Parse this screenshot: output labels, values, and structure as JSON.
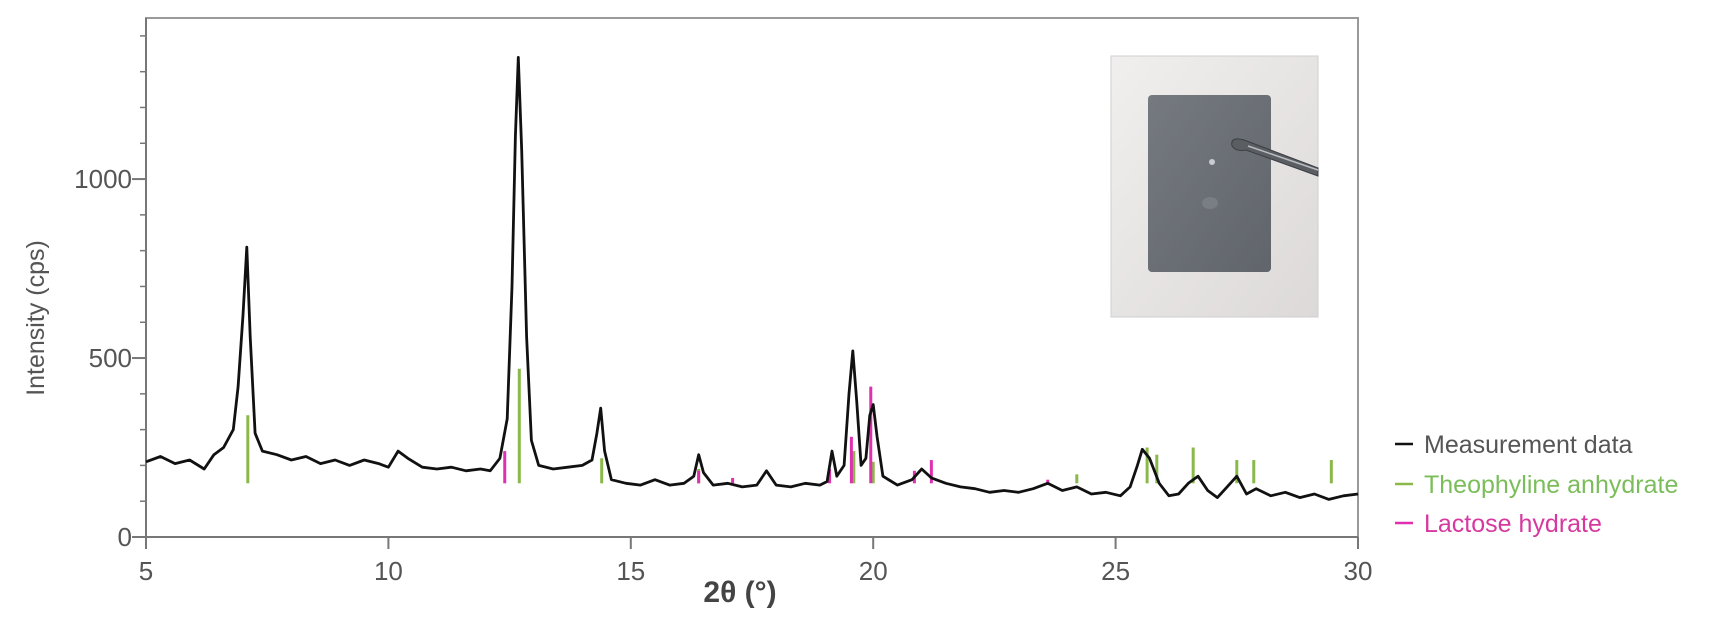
{
  "chart_data": {
    "type": "line",
    "xlabel": "2θ (°)",
    "ylabel": "Intensity (cps)",
    "xlim": [
      5,
      30
    ],
    "ylim": [
      0,
      1450
    ],
    "x_ticks": [
      5,
      10,
      15,
      20,
      25,
      30
    ],
    "y_ticks": [
      0,
      500,
      1000
    ],
    "legend_position": "right",
    "inset_image": "photo of a grey rectangular sample plate held by tweezers",
    "series": [
      {
        "name": "Measurement data",
        "color": "#111111",
        "type": "line",
        "points": [
          [
            5,
            210
          ],
          [
            5.3,
            225
          ],
          [
            5.6,
            205
          ],
          [
            5.9,
            215
          ],
          [
            6.2,
            190
          ],
          [
            6.4,
            230
          ],
          [
            6.6,
            250
          ],
          [
            6.8,
            300
          ],
          [
            6.9,
            420
          ],
          [
            7.0,
            620
          ],
          [
            7.08,
            810
          ],
          [
            7.15,
            560
          ],
          [
            7.25,
            290
          ],
          [
            7.4,
            240
          ],
          [
            7.7,
            230
          ],
          [
            8.0,
            215
          ],
          [
            8.3,
            225
          ],
          [
            8.6,
            205
          ],
          [
            8.9,
            215
          ],
          [
            9.2,
            200
          ],
          [
            9.5,
            215
          ],
          [
            9.8,
            205
          ],
          [
            10.0,
            195
          ],
          [
            10.2,
            240
          ],
          [
            10.4,
            220
          ],
          [
            10.7,
            195
          ],
          [
            11.0,
            190
          ],
          [
            11.3,
            195
          ],
          [
            11.6,
            185
          ],
          [
            11.9,
            190
          ],
          [
            12.1,
            185
          ],
          [
            12.3,
            220
          ],
          [
            12.45,
            330
          ],
          [
            12.55,
            700
          ],
          [
            12.62,
            1120
          ],
          [
            12.68,
            1340
          ],
          [
            12.75,
            1080
          ],
          [
            12.85,
            560
          ],
          [
            12.95,
            270
          ],
          [
            13.1,
            200
          ],
          [
            13.4,
            190
          ],
          [
            13.7,
            195
          ],
          [
            14.0,
            200
          ],
          [
            14.2,
            215
          ],
          [
            14.3,
            290
          ],
          [
            14.38,
            360
          ],
          [
            14.46,
            240
          ],
          [
            14.6,
            160
          ],
          [
            14.9,
            150
          ],
          [
            15.2,
            145
          ],
          [
            15.5,
            160
          ],
          [
            15.8,
            145
          ],
          [
            16.1,
            150
          ],
          [
            16.3,
            170
          ],
          [
            16.4,
            230
          ],
          [
            16.5,
            180
          ],
          [
            16.7,
            145
          ],
          [
            17.0,
            150
          ],
          [
            17.3,
            140
          ],
          [
            17.6,
            145
          ],
          [
            17.8,
            185
          ],
          [
            18.0,
            145
          ],
          [
            18.3,
            140
          ],
          [
            18.6,
            150
          ],
          [
            18.9,
            145
          ],
          [
            19.05,
            155
          ],
          [
            19.15,
            240
          ],
          [
            19.25,
            170
          ],
          [
            19.4,
            200
          ],
          [
            19.5,
            400
          ],
          [
            19.58,
            520
          ],
          [
            19.66,
            380
          ],
          [
            19.75,
            200
          ],
          [
            19.85,
            220
          ],
          [
            19.93,
            340
          ],
          [
            20.0,
            370
          ],
          [
            20.08,
            280
          ],
          [
            20.2,
            170
          ],
          [
            20.5,
            145
          ],
          [
            20.8,
            160
          ],
          [
            21.0,
            190
          ],
          [
            21.2,
            165
          ],
          [
            21.5,
            150
          ],
          [
            21.8,
            140
          ],
          [
            22.1,
            135
          ],
          [
            22.4,
            125
          ],
          [
            22.7,
            130
          ],
          [
            23.0,
            125
          ],
          [
            23.3,
            135
          ],
          [
            23.6,
            150
          ],
          [
            23.9,
            130
          ],
          [
            24.2,
            140
          ],
          [
            24.5,
            120
          ],
          [
            24.8,
            125
          ],
          [
            25.1,
            115
          ],
          [
            25.3,
            140
          ],
          [
            25.45,
            200
          ],
          [
            25.55,
            245
          ],
          [
            25.7,
            220
          ],
          [
            25.9,
            150
          ],
          [
            26.1,
            115
          ],
          [
            26.3,
            120
          ],
          [
            26.5,
            150
          ],
          [
            26.7,
            170
          ],
          [
            26.9,
            130
          ],
          [
            27.1,
            110
          ],
          [
            27.3,
            140
          ],
          [
            27.5,
            170
          ],
          [
            27.7,
            120
          ],
          [
            27.9,
            135
          ],
          [
            28.2,
            115
          ],
          [
            28.5,
            125
          ],
          [
            28.8,
            110
          ],
          [
            29.1,
            120
          ],
          [
            29.4,
            105
          ],
          [
            29.7,
            115
          ],
          [
            30.0,
            120
          ]
        ]
      },
      {
        "name": "Theophyline anhydrate",
        "color": "#8ab84a",
        "type": "sticks",
        "base": 150,
        "sticks": [
          [
            7.1,
            340
          ],
          [
            12.7,
            470
          ],
          [
            14.4,
            220
          ],
          [
            16.4,
            190
          ],
          [
            19.6,
            240
          ],
          [
            20.0,
            210
          ],
          [
            24.2,
            175
          ],
          [
            25.65,
            250
          ],
          [
            25.85,
            230
          ],
          [
            26.6,
            250
          ],
          [
            27.5,
            215
          ],
          [
            27.85,
            215
          ],
          [
            29.45,
            215
          ]
        ]
      },
      {
        "name": "Lactose hydrate",
        "color": "#e030b0",
        "type": "sticks",
        "base": 150,
        "sticks": [
          [
            12.4,
            240
          ],
          [
            16.4,
            185
          ],
          [
            17.1,
            165
          ],
          [
            19.1,
            190
          ],
          [
            19.55,
            280
          ],
          [
            19.95,
            420
          ],
          [
            20.85,
            185
          ],
          [
            21.2,
            215
          ],
          [
            23.6,
            160
          ]
        ]
      }
    ]
  }
}
